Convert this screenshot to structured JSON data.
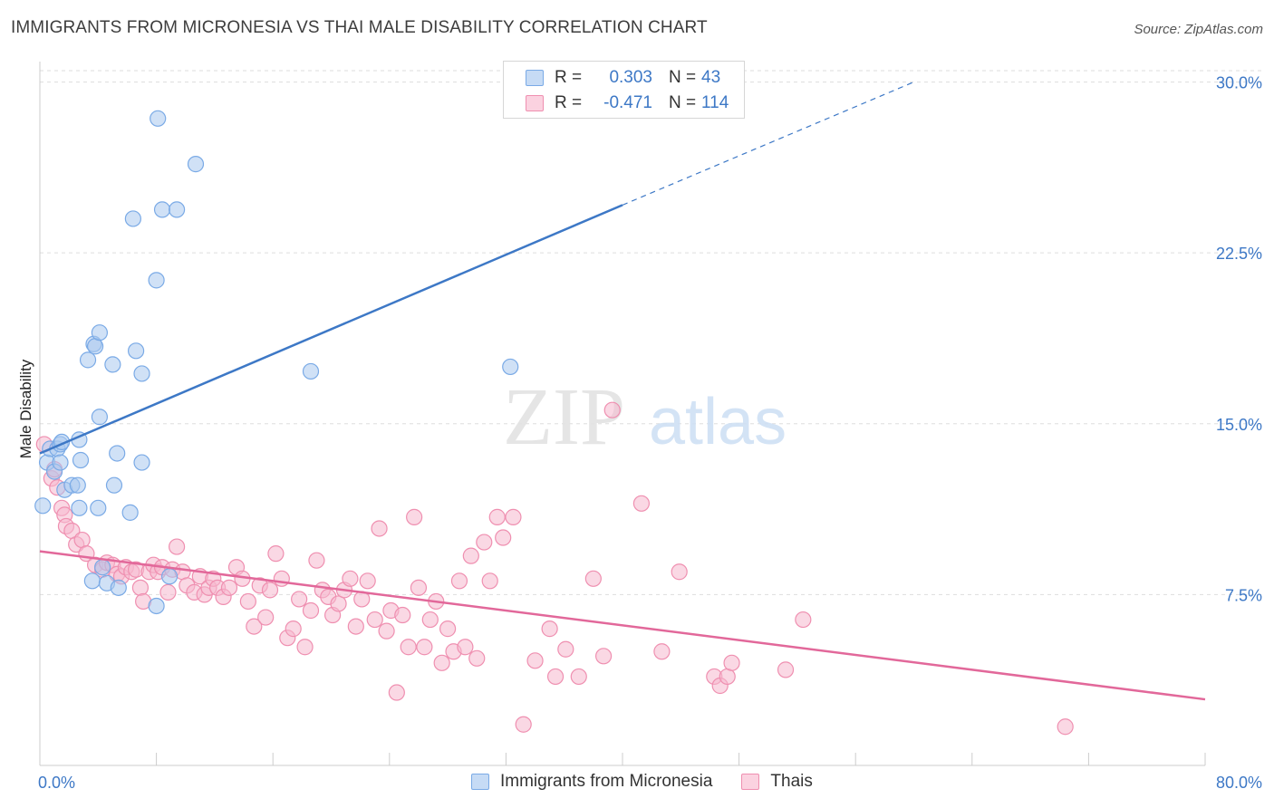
{
  "header": {
    "title": "IMMIGRANTS FROM MICRONESIA VS THAI MALE DISABILITY CORRELATION CHART",
    "source": "Source: ZipAtlas.com"
  },
  "watermark": {
    "zip": "ZIP",
    "atlas": "atlas"
  },
  "legend": {
    "rows": [
      {
        "r_label": "R =",
        "r_value": "0.303",
        "n_label": "N =",
        "n_value": "43",
        "color": "#7aaae6"
      },
      {
        "r_label": "R =",
        "r_value": "-0.471",
        "n_label": "N =",
        "n_value": "114",
        "color": "#ef8fb0"
      }
    ]
  },
  "bottom_legend": {
    "items": [
      {
        "label": "Immigrants from Micronesia",
        "color": "#7aaae6"
      },
      {
        "label": "Thais",
        "color": "#ef8fb0"
      }
    ]
  },
  "colors": {
    "blue": "#3d78c6",
    "blue_fill": "#a9c8ef",
    "pink": "#e2689a",
    "pink_fill": "#f5b8cd",
    "grid": "#dddddd"
  },
  "chart_data": {
    "type": "scatter",
    "title": "IMMIGRANTS FROM MICRONESIA VS THAI MALE DISABILITY CORRELATION CHART",
    "xlabel": "",
    "ylabel": "Male Disability",
    "xlim": [
      0,
      80
    ],
    "ylim": [
      0,
      30.5
    ],
    "x_tick_labels": [
      "0.0%",
      "80.0%"
    ],
    "y_ticks": [
      7.5,
      15.0,
      22.5,
      30.0
    ],
    "y_tick_labels": [
      "7.5%",
      "15.0%",
      "22.5%",
      "30.0%"
    ],
    "grid": true,
    "legend_position": "top-center",
    "series": [
      {
        "name": "Immigrants from Micronesia",
        "R": 0.303,
        "N": 43,
        "trend": {
          "x": [
            0,
            40,
            60
          ],
          "y": [
            13.7,
            24.6,
            30.0
          ],
          "solid_until_x": 40
        },
        "points": [
          [
            0.2,
            11.4
          ],
          [
            0.5,
            13.3
          ],
          [
            0.7,
            13.9
          ],
          [
            1.0,
            12.9
          ],
          [
            1.2,
            13.9
          ],
          [
            1.4,
            14.1
          ],
          [
            1.4,
            13.3
          ],
          [
            1.5,
            14.2
          ],
          [
            1.7,
            12.1
          ],
          [
            2.2,
            12.3
          ],
          [
            2.6,
            12.3
          ],
          [
            2.7,
            11.3
          ],
          [
            2.7,
            14.3
          ],
          [
            2.8,
            13.4
          ],
          [
            3.3,
            17.8
          ],
          [
            3.6,
            8.1
          ],
          [
            3.7,
            18.5
          ],
          [
            3.8,
            18.4
          ],
          [
            4.0,
            11.3
          ],
          [
            4.1,
            19.0
          ],
          [
            4.1,
            15.3
          ],
          [
            4.3,
            8.7
          ],
          [
            4.6,
            8.0
          ],
          [
            5.0,
            17.6
          ],
          [
            5.1,
            12.3
          ],
          [
            5.3,
            13.7
          ],
          [
            5.4,
            7.8
          ],
          [
            6.2,
            11.1
          ],
          [
            6.4,
            24.0
          ],
          [
            6.6,
            18.2
          ],
          [
            7.0,
            17.2
          ],
          [
            7.0,
            13.3
          ],
          [
            8.0,
            7.0
          ],
          [
            8.0,
            21.3
          ],
          [
            8.1,
            28.4
          ],
          [
            8.4,
            24.4
          ],
          [
            8.9,
            8.3
          ],
          [
            9.4,
            24.4
          ],
          [
            10.7,
            26.4
          ],
          [
            18.6,
            17.3
          ],
          [
            32.3,
            17.5
          ]
        ]
      },
      {
        "name": "Thais",
        "R": -0.471,
        "N": 114,
        "trend": {
          "x": [
            0,
            80
          ],
          "y": [
            9.4,
            2.9
          ]
        },
        "points": [
          [
            0.3,
            14.1
          ],
          [
            0.8,
            12.6
          ],
          [
            1.0,
            13.0
          ],
          [
            1.2,
            12.2
          ],
          [
            1.5,
            11.3
          ],
          [
            1.7,
            11.0
          ],
          [
            1.8,
            10.5
          ],
          [
            2.2,
            10.3
          ],
          [
            2.5,
            9.7
          ],
          [
            2.9,
            9.9
          ],
          [
            3.2,
            9.3
          ],
          [
            3.8,
            8.8
          ],
          [
            4.3,
            8.6
          ],
          [
            4.6,
            8.9
          ],
          [
            5.0,
            8.8
          ],
          [
            5.3,
            8.4
          ],
          [
            5.6,
            8.3
          ],
          [
            5.9,
            8.7
          ],
          [
            6.3,
            8.5
          ],
          [
            6.6,
            8.6
          ],
          [
            6.9,
            7.8
          ],
          [
            7.1,
            7.2
          ],
          [
            7.5,
            8.5
          ],
          [
            7.8,
            8.8
          ],
          [
            8.1,
            8.5
          ],
          [
            8.4,
            8.7
          ],
          [
            8.8,
            7.6
          ],
          [
            9.1,
            8.6
          ],
          [
            9.4,
            9.6
          ],
          [
            9.8,
            8.5
          ],
          [
            10.1,
            7.9
          ],
          [
            10.6,
            7.6
          ],
          [
            11.0,
            8.3
          ],
          [
            11.3,
            7.5
          ],
          [
            11.6,
            7.8
          ],
          [
            11.9,
            8.2
          ],
          [
            12.2,
            7.8
          ],
          [
            12.6,
            7.4
          ],
          [
            13.0,
            7.8
          ],
          [
            13.5,
            8.7
          ],
          [
            13.9,
            8.2
          ],
          [
            14.3,
            7.2
          ],
          [
            14.7,
            6.1
          ],
          [
            15.1,
            7.9
          ],
          [
            15.5,
            6.5
          ],
          [
            15.8,
            7.7
          ],
          [
            16.2,
            9.3
          ],
          [
            16.6,
            8.2
          ],
          [
            17.0,
            5.6
          ],
          [
            17.4,
            6.0
          ],
          [
            17.8,
            7.3
          ],
          [
            18.2,
            5.2
          ],
          [
            18.6,
            6.8
          ],
          [
            19.0,
            9.0
          ],
          [
            19.4,
            7.7
          ],
          [
            19.8,
            7.4
          ],
          [
            20.1,
            6.6
          ],
          [
            20.5,
            7.1
          ],
          [
            20.9,
            7.7
          ],
          [
            21.3,
            8.2
          ],
          [
            21.7,
            6.1
          ],
          [
            22.1,
            7.3
          ],
          [
            22.5,
            8.1
          ],
          [
            23.0,
            6.4
          ],
          [
            23.3,
            10.4
          ],
          [
            23.8,
            5.9
          ],
          [
            24.1,
            6.8
          ],
          [
            24.5,
            3.2
          ],
          [
            24.9,
            6.6
          ],
          [
            25.3,
            5.2
          ],
          [
            25.7,
            10.9
          ],
          [
            26.0,
            7.8
          ],
          [
            26.4,
            5.2
          ],
          [
            26.8,
            6.4
          ],
          [
            27.2,
            7.2
          ],
          [
            27.6,
            4.5
          ],
          [
            28.0,
            6.0
          ],
          [
            28.4,
            5.0
          ],
          [
            28.8,
            8.1
          ],
          [
            29.2,
            5.2
          ],
          [
            29.6,
            9.2
          ],
          [
            30.0,
            4.7
          ],
          [
            30.5,
            9.8
          ],
          [
            30.9,
            8.1
          ],
          [
            31.4,
            10.9
          ],
          [
            31.8,
            10.0
          ],
          [
            32.5,
            10.9
          ],
          [
            33.2,
            1.8
          ],
          [
            34.0,
            4.6
          ],
          [
            35.0,
            6.0
          ],
          [
            35.4,
            3.9
          ],
          [
            36.1,
            5.1
          ],
          [
            37.0,
            3.9
          ],
          [
            38.0,
            8.2
          ],
          [
            38.7,
            4.8
          ],
          [
            39.3,
            15.6
          ],
          [
            41.3,
            11.5
          ],
          [
            42.7,
            5.0
          ],
          [
            43.9,
            8.5
          ],
          [
            46.3,
            3.9
          ],
          [
            46.7,
            3.5
          ],
          [
            47.2,
            3.9
          ],
          [
            47.5,
            4.5
          ],
          [
            51.2,
            4.2
          ],
          [
            52.4,
            6.4
          ],
          [
            70.4,
            1.7
          ]
        ]
      }
    ]
  }
}
